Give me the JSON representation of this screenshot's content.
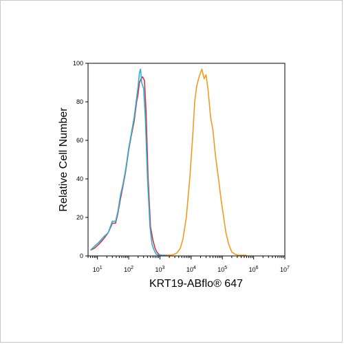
{
  "chart_data": {
    "type": "line",
    "title": "",
    "xlabel": "KRT19-ABflo® 647",
    "ylabel": "Relative Cell Number",
    "x_scale": "log",
    "xlim": [
      5,
      10000000
    ],
    "ylim": [
      0,
      100
    ],
    "y_ticks": [
      0,
      20,
      40,
      60,
      80,
      100
    ],
    "x_tick_labels": [
      {
        "value": 10,
        "base": "10",
        "exp": "1"
      },
      {
        "value": 100,
        "base": "10",
        "exp": "2"
      },
      {
        "value": 1000,
        "base": "10",
        "exp": "3"
      },
      {
        "value": 10000,
        "base": "10",
        "exp": "4"
      },
      {
        "value": 100000,
        "base": "10",
        "exp": "5"
      },
      {
        "value": 1000000,
        "base": "10",
        "exp": "6"
      },
      {
        "value": 10000000,
        "base": "10",
        "exp": "7"
      }
    ],
    "grid": false,
    "legend": "none",
    "series": [
      {
        "color": "#d8323c",
        "x": [
          6,
          8,
          11,
          16,
          22,
          30,
          38,
          45,
          55,
          65,
          80,
          100,
          120,
          150,
          180,
          200,
          220,
          250,
          280,
          320,
          360,
          420,
          500,
          600,
          700,
          800,
          900,
          1000,
          1200,
          1500,
          2000
        ],
        "y": [
          3,
          4,
          6,
          9,
          12,
          17,
          17,
          22,
          30,
          36,
          44,
          55,
          62,
          70,
          80,
          84,
          90,
          92,
          93,
          91,
          75,
          40,
          15,
          8,
          4,
          2,
          1,
          0.5,
          0.2,
          0,
          0
        ]
      },
      {
        "color": "#2bb0d8",
        "x": [
          6,
          8,
          11,
          16,
          22,
          30,
          38,
          45,
          55,
          65,
          80,
          100,
          120,
          150,
          180,
          200,
          220,
          240,
          260,
          300,
          340,
          400,
          480,
          560,
          650,
          750,
          850,
          1000,
          1200,
          1500,
          2000
        ],
        "y": [
          3,
          5,
          7,
          10,
          12,
          18,
          18,
          23,
          32,
          37,
          45,
          56,
          63,
          72,
          82,
          88,
          95,
          97,
          90,
          87,
          72,
          40,
          15,
          6,
          3,
          1,
          0.5,
          0.2,
          0,
          0,
          0
        ]
      },
      {
        "color": "#f39a1e",
        "x": [
          1500,
          2500,
          3500,
          4500,
          5500,
          7000,
          9000,
          11000,
          13000,
          15000,
          18000,
          22000,
          26000,
          30000,
          35000,
          42000,
          50000,
          60000,
          75000,
          90000,
          110000,
          130000,
          160000,
          200000,
          250000,
          320000,
          400000,
          600000
        ],
        "y": [
          0,
          0.5,
          1.5,
          4,
          9,
          20,
          40,
          60,
          80,
          88,
          93,
          97,
          92,
          94,
          86,
          72,
          65,
          52,
          40,
          30,
          20,
          12,
          6,
          2,
          1,
          0.3,
          0,
          0
        ]
      }
    ]
  }
}
